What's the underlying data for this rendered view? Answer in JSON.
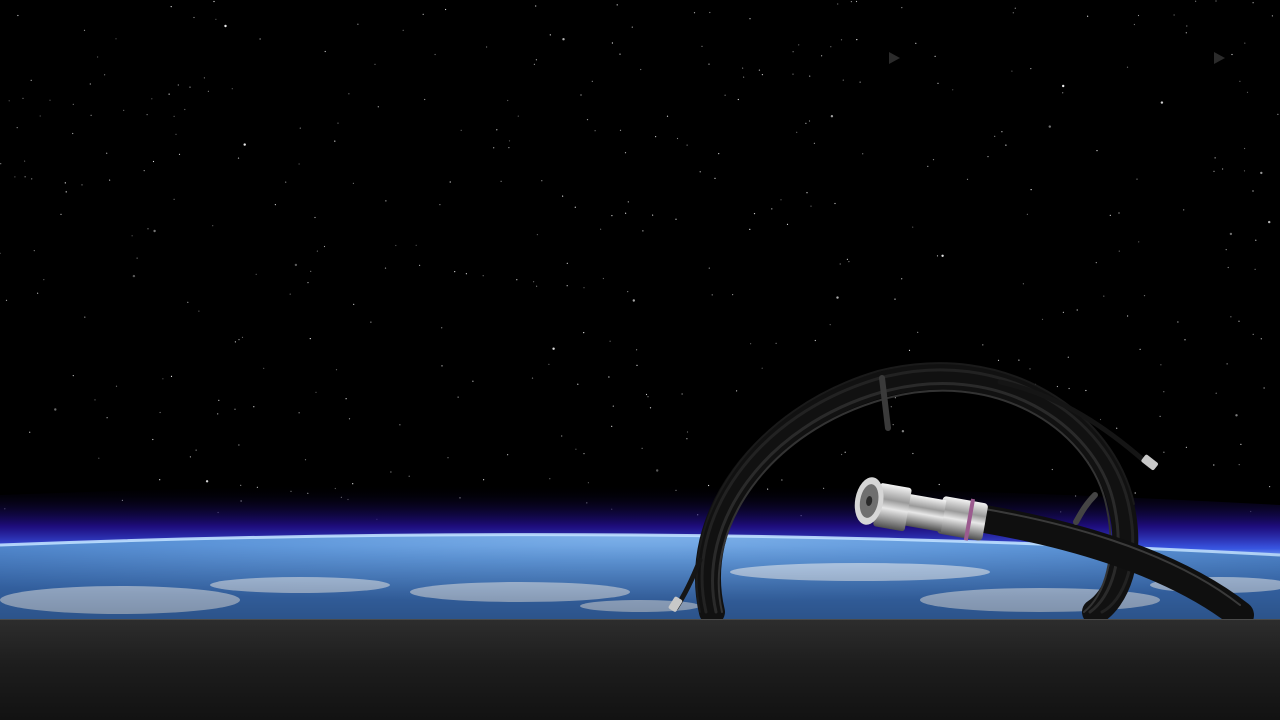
{
  "hero": {
    "scene": "space-earth-horizon",
    "product": "coaxial-cable-coil",
    "colors": {
      "space": "#000000",
      "atmosphere_glow": "#3a1fd6",
      "ocean": "#5f97da",
      "cable": "#1b1b1b",
      "footer": "#1e1e1e"
    }
  },
  "navigation": {
    "arrow_icon_1": "play-arrow-icon",
    "arrow_icon_2": "play-arrow-icon"
  }
}
